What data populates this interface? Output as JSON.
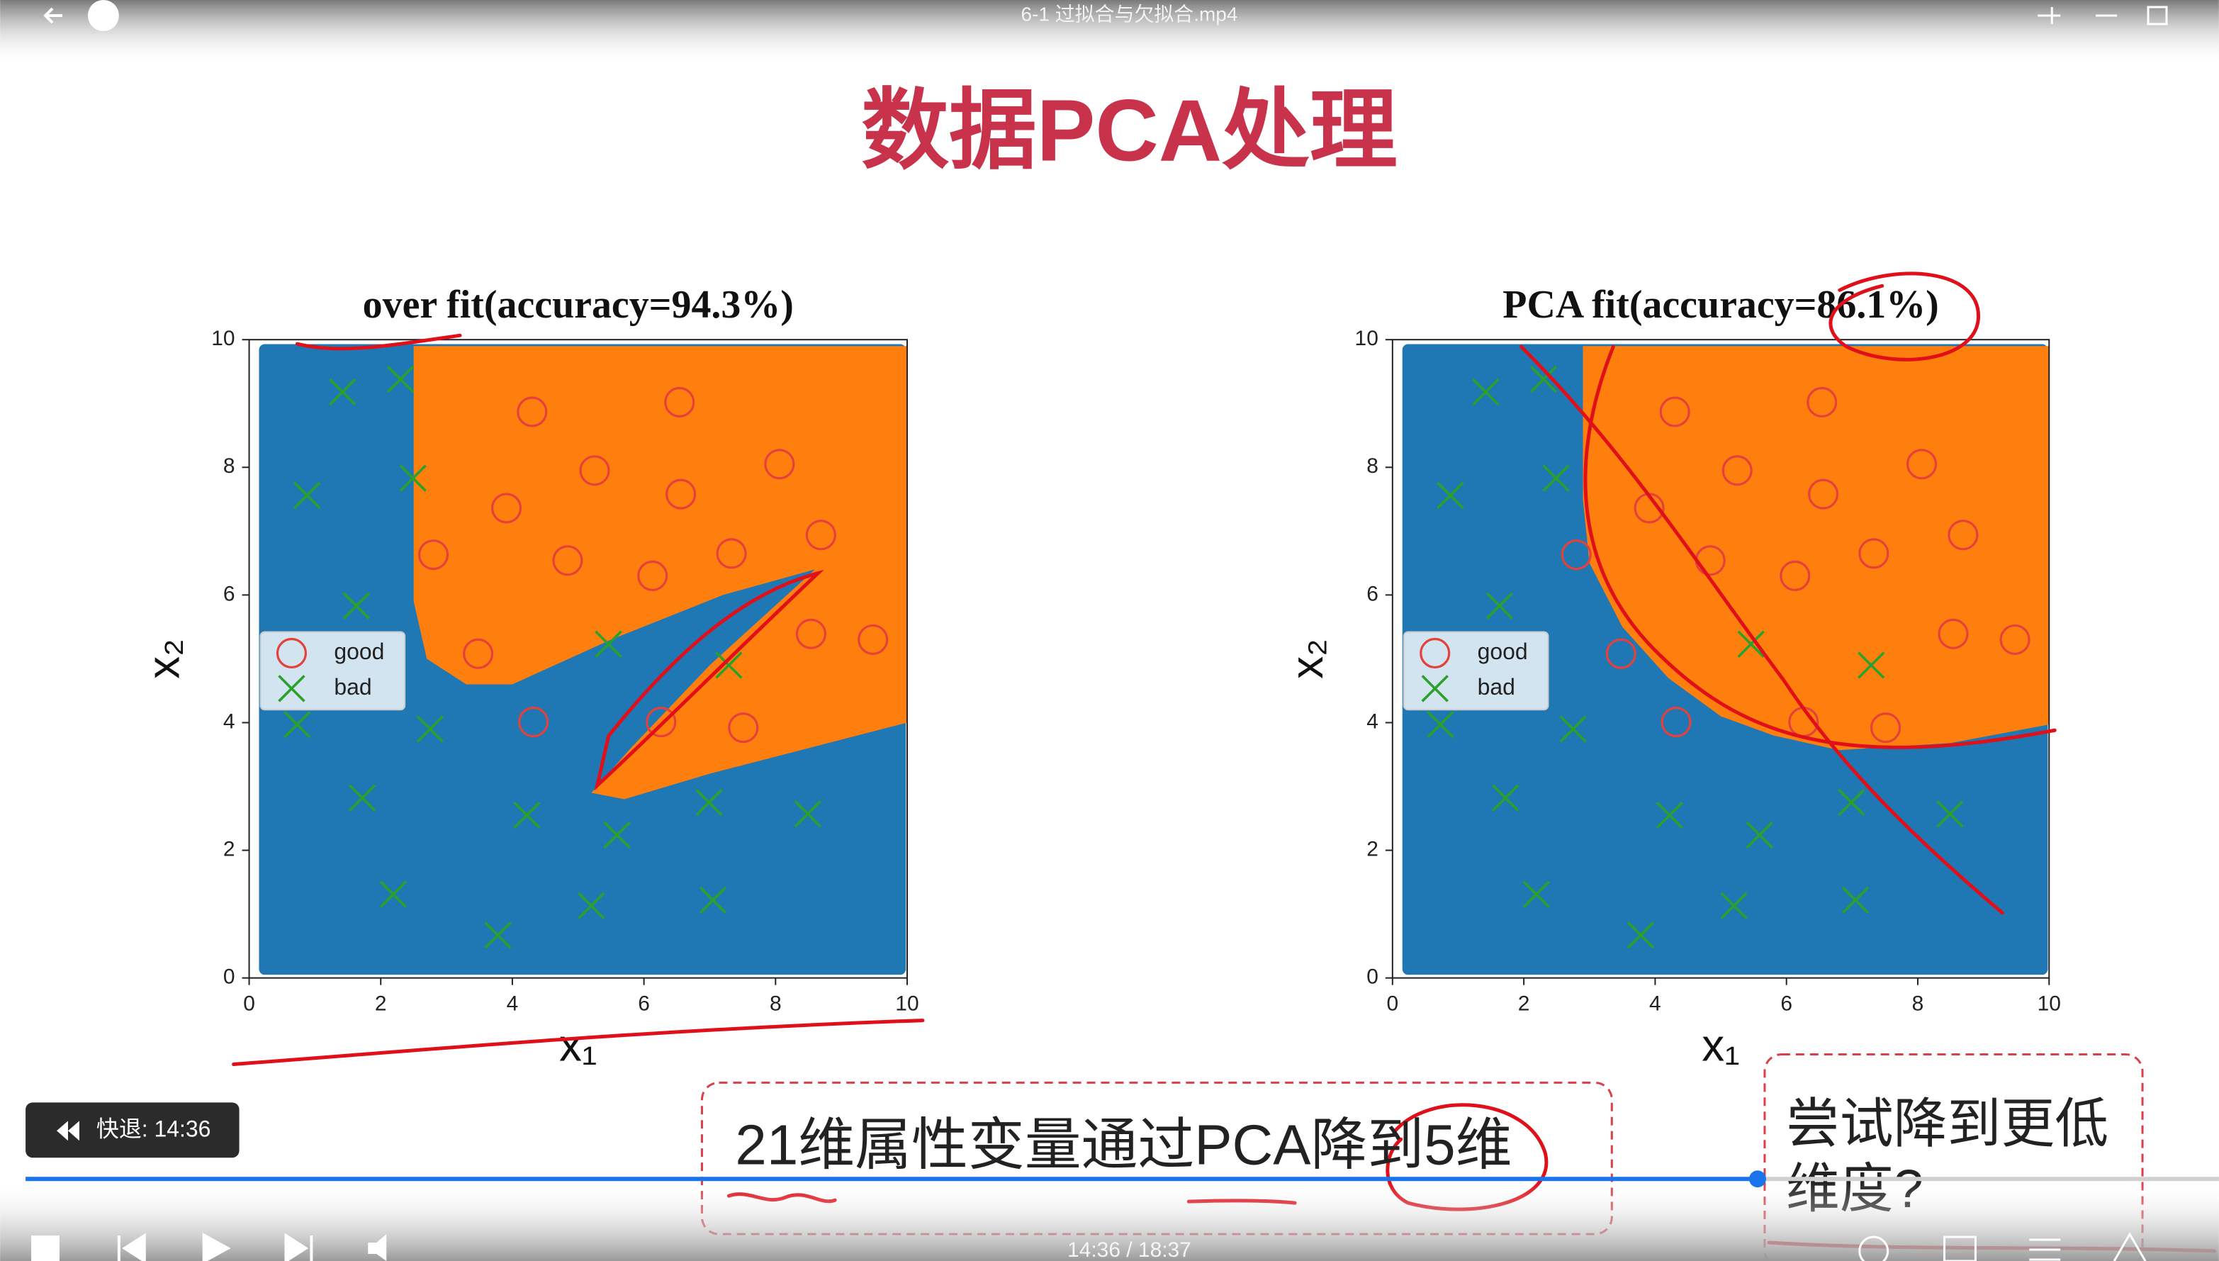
{
  "window": {
    "title": "6-1 过拟合与欠拟合.mp4"
  },
  "slide": {
    "title": "数据PCA处理",
    "caption": "21维属性变量通过PCA降到5维",
    "question": "尝试降到更低维度?"
  },
  "chart_data": [
    {
      "type": "scatter",
      "title": "over fit(accuracy=94.3%)",
      "xlabel": "x₁",
      "ylabel": "x₂",
      "xlim": [
        0,
        10
      ],
      "ylim": [
        0,
        10
      ],
      "xticks": [
        0,
        2,
        4,
        6,
        8,
        10
      ],
      "yticks": [
        0,
        2,
        4,
        6,
        8,
        10
      ],
      "legend": "center-left",
      "region_colors": [
        "#1f77b4",
        "#ff7f0e"
      ],
      "series": [
        {
          "name": "good",
          "color": "#e5403a",
          "marker": "circle",
          "x": [
            4.3,
            6.54,
            5.25,
            3.91,
            8.06,
            6.56,
            2.8,
            4.84,
            7.33,
            8.69,
            6.13,
            3.48,
            8.54,
            9.48,
            4.32,
            6.26,
            7.51
          ],
          "values": [
            8.87,
            9.02,
            7.95,
            7.36,
            8.05,
            7.58,
            6.63,
            6.54,
            6.65,
            6.94,
            6.3,
            5.08,
            5.39,
            5.3,
            4.01,
            4.01,
            3.92
          ]
        },
        {
          "name": "bad",
          "color": "#2ca02c",
          "marker": "x",
          "x": [
            1.42,
            2.3,
            0.88,
            2.49,
            1.63,
            5.46,
            7.29,
            0.73,
            2.75,
            1.72,
            4.22,
            5.59,
            6.99,
            8.49,
            2.19,
            5.2,
            7.05,
            3.78
          ],
          "values": [
            9.18,
            9.38,
            7.56,
            7.83,
            5.83,
            5.23,
            4.9,
            3.97,
            3.9,
            2.82,
            2.55,
            2.24,
            2.75,
            2.57,
            1.31,
            1.13,
            1.22,
            0.67
          ]
        }
      ]
    },
    {
      "type": "scatter",
      "title": "PCA fit(accuracy=86.1%)",
      "xlabel": "x₁",
      "ylabel": "x₂",
      "xlim": [
        0,
        10
      ],
      "ylim": [
        0,
        10
      ],
      "xticks": [
        0,
        2,
        4,
        6,
        8,
        10
      ],
      "yticks": [
        0,
        2,
        4,
        6,
        8,
        10
      ],
      "legend": "center-left",
      "region_colors": [
        "#1f77b4",
        "#ff7f0e"
      ],
      "series": [
        {
          "name": "good",
          "color": "#e5403a",
          "marker": "circle",
          "x": [
            4.3,
            6.54,
            5.25,
            3.91,
            8.06,
            6.56,
            2.8,
            4.84,
            7.33,
            8.69,
            6.13,
            3.48,
            8.54,
            9.48,
            4.32,
            6.26,
            7.51
          ],
          "values": [
            8.87,
            9.02,
            7.95,
            7.36,
            8.05,
            7.58,
            6.63,
            6.54,
            6.65,
            6.94,
            6.3,
            5.08,
            5.39,
            5.3,
            4.01,
            4.01,
            3.92
          ]
        },
        {
          "name": "bad",
          "color": "#2ca02c",
          "marker": "x",
          "x": [
            1.42,
            2.3,
            0.88,
            2.49,
            1.63,
            5.46,
            7.29,
            0.73,
            2.75,
            1.72,
            4.22,
            5.59,
            6.99,
            8.49,
            2.19,
            5.2,
            7.05,
            3.78
          ],
          "values": [
            9.18,
            9.38,
            7.56,
            7.83,
            5.83,
            5.23,
            4.9,
            3.97,
            3.9,
            2.82,
            2.55,
            2.24,
            2.75,
            2.57,
            1.31,
            1.13,
            1.22,
            0.67
          ]
        }
      ]
    }
  ],
  "player": {
    "toast": "快退: 14:36",
    "time": "14:36 / 18:37"
  }
}
